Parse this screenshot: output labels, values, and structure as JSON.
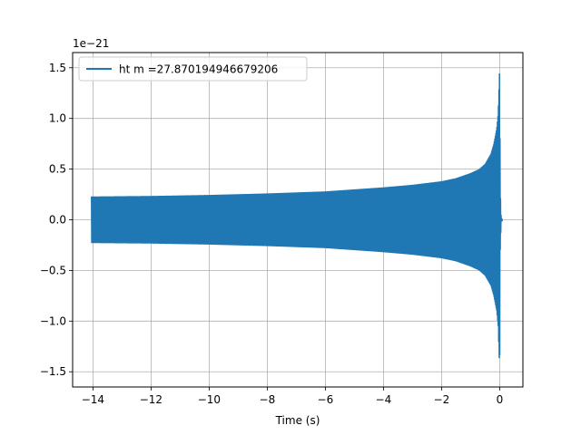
{
  "chart_data": {
    "type": "line",
    "title": "",
    "xlabel": "Time (s)",
    "ylabel": "",
    "y_offset_label": "1e−21",
    "xlim": [
      -14.7,
      0.8
    ],
    "ylim": [
      -1.65,
      1.65
    ],
    "x_ticks": [
      -14,
      -12,
      -10,
      -8,
      -6,
      -4,
      -2,
      0
    ],
    "x_tick_labels": [
      "−14",
      "−12",
      "−10",
      "−8",
      "−6",
      "−4",
      "−2",
      "0"
    ],
    "y_ticks": [
      -1.5,
      -1.0,
      -0.5,
      0.0,
      0.5,
      1.0,
      1.5
    ],
    "y_tick_labels": [
      "−1.5",
      "−1.0",
      "−0.5",
      "0.0",
      "0.5",
      "1.0",
      "1.5"
    ],
    "grid": true,
    "legend_position": "upper-left",
    "series": [
      {
        "name": "ht m =27.870194946679206",
        "color": "#1f77b4",
        "envelope": {
          "x": [
            -14.05,
            -12,
            -10,
            -8,
            -6,
            -4,
            -3,
            -2,
            -1.5,
            -1,
            -0.7,
            -0.5,
            -0.3,
            -0.2,
            -0.1,
            -0.05,
            0.0,
            0.02,
            0.05,
            0.1
          ],
          "upper": [
            0.23,
            0.235,
            0.245,
            0.26,
            0.28,
            0.32,
            0.345,
            0.38,
            0.41,
            0.46,
            0.5,
            0.55,
            0.65,
            0.75,
            0.9,
            1.05,
            1.5,
            0.3,
            0.02,
            0.0
          ],
          "lower": [
            -0.23,
            -0.235,
            -0.245,
            -0.26,
            -0.28,
            -0.32,
            -0.345,
            -0.38,
            -0.41,
            -0.46,
            -0.5,
            -0.55,
            -0.65,
            -0.75,
            -0.9,
            -1.05,
            -1.5,
            -0.3,
            -0.02,
            0.0
          ]
        }
      }
    ]
  }
}
